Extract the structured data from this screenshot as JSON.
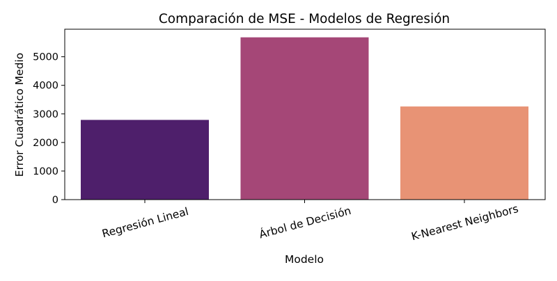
{
  "chart_data": {
    "type": "bar",
    "title": "Comparación de MSE - Modelos de Regresión",
    "xlabel": "Modelo",
    "ylabel": "Error Cuadrático Medio",
    "categories": [
      "Regresión Lineal",
      "Árbol de Decisión",
      "K-Nearest Neighbors"
    ],
    "values": [
      2790,
      5680,
      3260
    ],
    "colors": [
      "#4e1f6b",
      "#a54777",
      "#e89375"
    ],
    "ylim": [
      0,
      5964
    ],
    "yticks": [
      0,
      1000,
      2000,
      3000,
      4000,
      5000
    ],
    "ytick_labels": [
      "0",
      "1000",
      "2000",
      "3000",
      "4000",
      "5000"
    ],
    "xtick_rotation": -15,
    "grid": false,
    "legend": false
  }
}
